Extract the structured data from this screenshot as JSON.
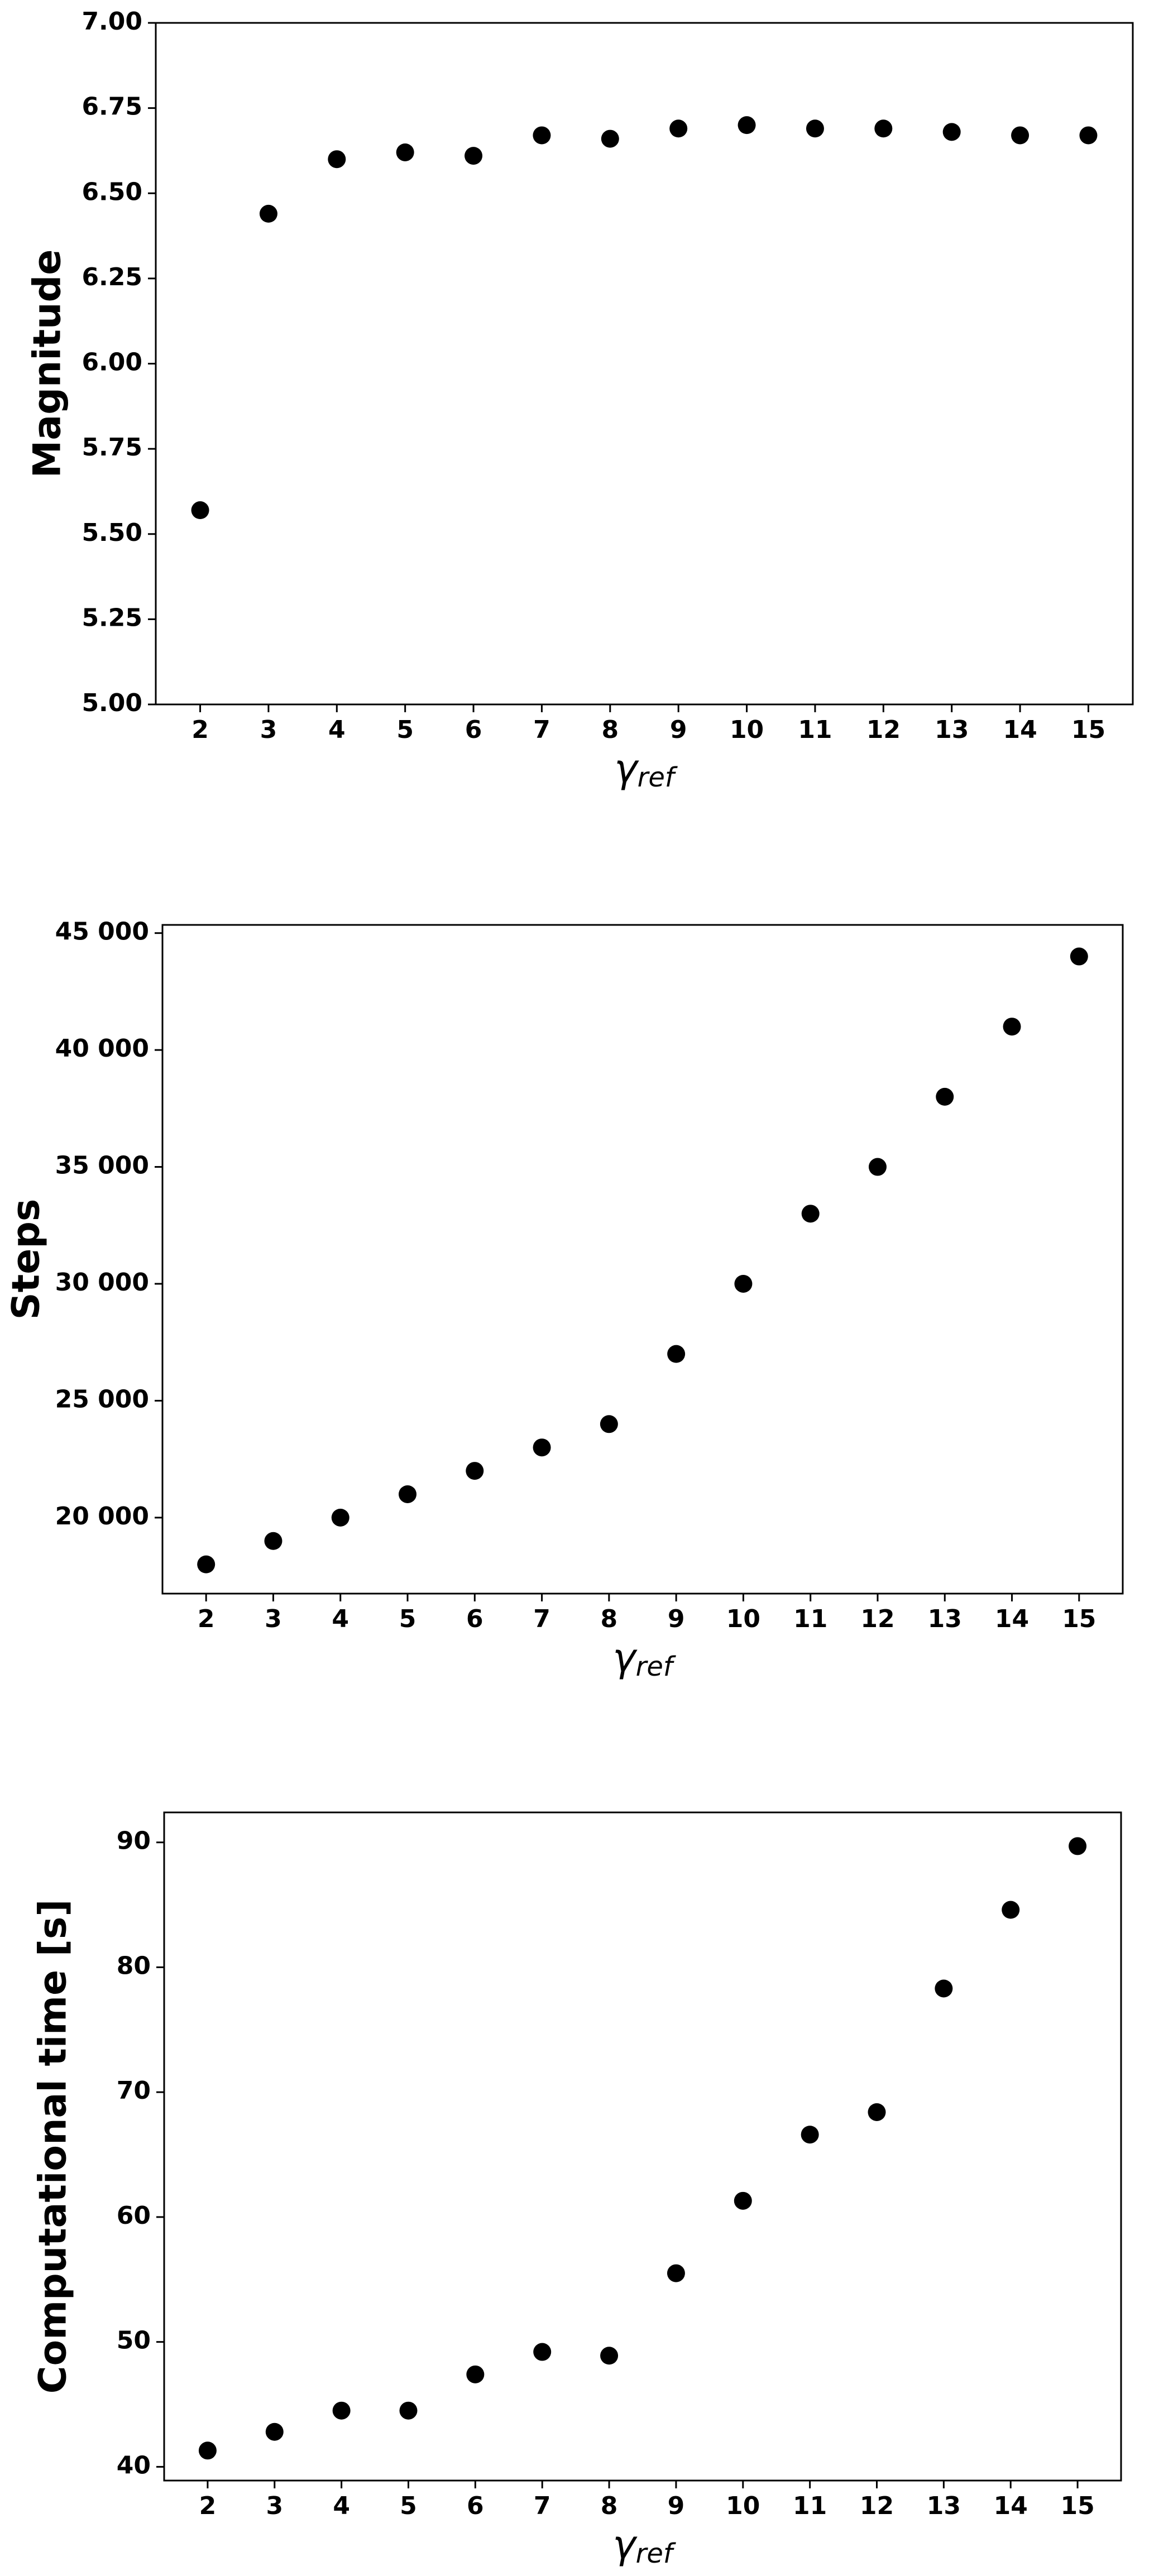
{
  "chart_data": [
    {
      "type": "scatter",
      "y_label": "Magnitude",
      "x_label": {
        "base": "γ",
        "sub": "ref"
      },
      "x": [
        2,
        3,
        4,
        5,
        6,
        7,
        8,
        9,
        10,
        11,
        12,
        13,
        14,
        15
      ],
      "values": [
        5.57,
        6.44,
        6.6,
        6.62,
        6.61,
        6.67,
        6.66,
        6.69,
        6.7,
        6.69,
        6.69,
        6.68,
        6.67,
        6.67
      ],
      "color": "#000000",
      "xlim": [
        1.35,
        15.65
      ],
      "xticks": [
        2,
        3,
        4,
        5,
        6,
        7,
        8,
        9,
        10,
        11,
        12,
        13,
        14,
        15
      ],
      "ylim": [
        5,
        7
      ],
      "yticks": [
        {
          "value": 5,
          "label": "5.00"
        },
        {
          "value": 5.25,
          "label": "5.25"
        },
        {
          "value": 5.5,
          "label": "5.50"
        },
        {
          "value": 5.75,
          "label": "5.75"
        },
        {
          "value": 6,
          "label": "6.00"
        },
        {
          "value": 6.25,
          "label": "6.25"
        },
        {
          "value": 6.5,
          "label": "6.50"
        },
        {
          "value": 6.75,
          "label": "6.75"
        },
        {
          "value": 7,
          "label": "7.00"
        }
      ],
      "grid": false
    },
    {
      "type": "scatter",
      "y_label": "Steps",
      "x_label": {
        "base": "γ",
        "sub": "ref"
      },
      "x": [
        2,
        3,
        4,
        5,
        6,
        7,
        8,
        9,
        10,
        11,
        12,
        13,
        14,
        15
      ],
      "values": [
        18000,
        19000,
        20000,
        21000,
        22000,
        23000,
        24000,
        27000,
        30000,
        33000,
        35000,
        38000,
        41000,
        44000
      ],
      "color": "#000000",
      "xlim": [
        1.35,
        15.65
      ],
      "xticks": [
        2,
        3,
        4,
        5,
        6,
        7,
        8,
        9,
        10,
        11,
        12,
        13,
        14,
        15
      ],
      "ylim": [
        16750,
        45350
      ],
      "yticks": [
        {
          "value": 20000,
          "label": "20 000"
        },
        {
          "value": 25000,
          "label": "25 000"
        },
        {
          "value": 30000,
          "label": "30 000"
        },
        {
          "value": 35000,
          "label": "35 000"
        },
        {
          "value": 40000,
          "label": "40 000"
        },
        {
          "value": 45000,
          "label": "45 000"
        }
      ],
      "grid": false
    },
    {
      "type": "scatter",
      "y_label": "Computational time [s]",
      "x_label": {
        "base": "γ",
        "sub": "ref"
      },
      "x": [
        2,
        3,
        4,
        5,
        6,
        7,
        8,
        9,
        10,
        11,
        12,
        13,
        14,
        15
      ],
      "values": [
        41.3,
        42.8,
        44.5,
        44.5,
        47.4,
        49.2,
        48.9,
        55.5,
        61.3,
        66.6,
        68.4,
        78.3,
        84.6,
        89.7
      ],
      "color": "#000000",
      "xlim": [
        1.35,
        15.65
      ],
      "xticks": [
        2,
        3,
        4,
        5,
        6,
        7,
        8,
        9,
        10,
        11,
        12,
        13,
        14,
        15
      ],
      "ylim": [
        38.9,
        92.4
      ],
      "yticks": [
        40,
        50,
        60,
        70,
        80,
        90
      ],
      "grid": false
    }
  ]
}
